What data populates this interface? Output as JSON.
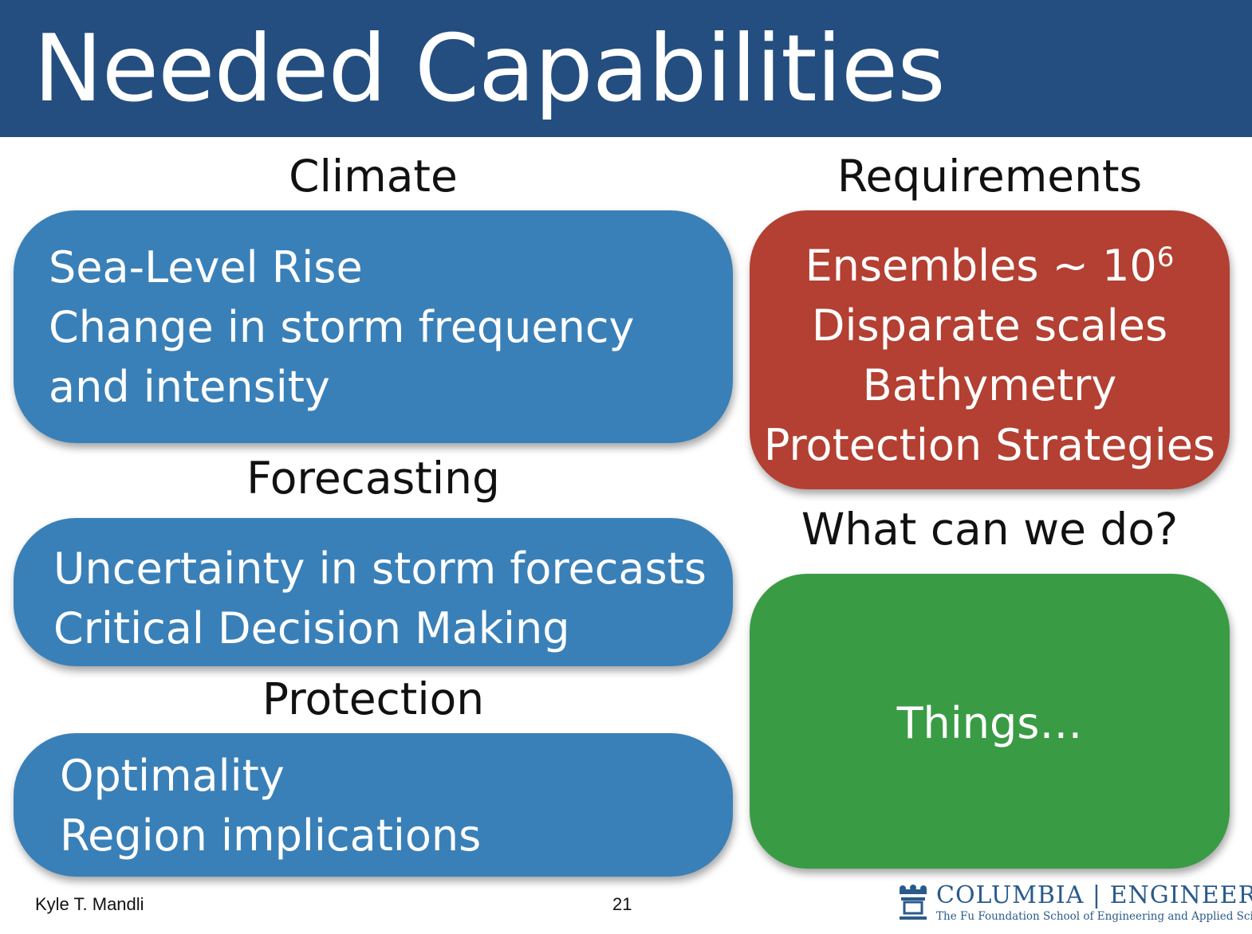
{
  "slide": {
    "title": "Needed Capabilities",
    "climate": {
      "heading": "Climate",
      "lines": [
        "Sea-Level Rise",
        "Change in storm frequency",
        "and intensity"
      ]
    },
    "forecasting": {
      "heading": "Forecasting",
      "lines": [
        "Uncertainty in storm forecasts",
        "Critical Decision Making"
      ]
    },
    "protection": {
      "heading": "Protection",
      "lines": [
        "Optimality",
        "Region implications"
      ]
    },
    "requirements": {
      "heading": "Requirements",
      "ensembles_text": "Ensembles ~ 10",
      "ensembles_exponent": "6",
      "lines": [
        "Disparate scales",
        "Bathymetry",
        "Protection Strategies"
      ]
    },
    "what_can_we_do": {
      "heading": "What can we do?",
      "text": "Things…"
    },
    "footer": {
      "author": "Kyle T. Mandli",
      "page_number": "21",
      "logo_main": "COLUMBIA | ENGINEERING",
      "logo_sub": "The Fu Foundation School of Engineering and Applied Science"
    }
  },
  "colors": {
    "header": "#244e80",
    "blue_box": "#3a80b8",
    "red_box": "#b34032",
    "green_box": "#3a9b45"
  }
}
